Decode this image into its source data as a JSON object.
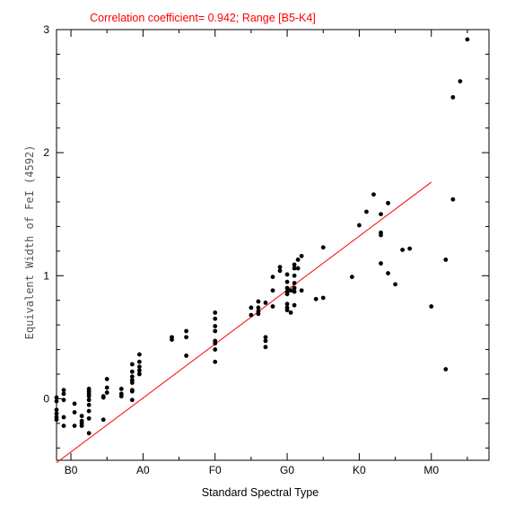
{
  "chart_data": {
    "type": "scatter",
    "title": "Correlation coefficient= 0.942; Range [B5-K4]",
    "xlabel": "Standard Spectral Type",
    "ylabel": "Equivalent Width of FeI (4592)",
    "xlim": [
      -2,
      58
    ],
    "ylim": [
      -0.5,
      3.0
    ],
    "x_tick_labels": [
      {
        "label": "B0",
        "value": 0
      },
      {
        "label": "A0",
        "value": 10
      },
      {
        "label": "F0",
        "value": 20
      },
      {
        "label": "G0",
        "value": 30
      },
      {
        "label": "K0",
        "value": 40
      },
      {
        "label": "M0",
        "value": 50
      }
    ],
    "y_ticks": [
      0,
      1,
      2,
      3
    ],
    "y_tick_labels": [
      "0",
      "1",
      "2",
      "3"
    ],
    "fit_line": {
      "x": [
        -2,
        50
      ],
      "y": [
        -0.52,
        1.76
      ],
      "color": "#ff0000"
    },
    "title_color": "#ff0000",
    "grid": false,
    "points": [
      [
        -2,
        -0.12
      ],
      [
        -2,
        -0.09
      ],
      [
        -2,
        -0.15
      ],
      [
        -2,
        -0.02
      ],
      [
        -2,
        0.01
      ],
      [
        -2,
        -0.17
      ],
      [
        -1,
        0.04
      ],
      [
        -1,
        0.07
      ],
      [
        -1,
        -0.01
      ],
      [
        -1,
        -0.15
      ],
      [
        -1,
        -0.22
      ],
      [
        0.5,
        -0.11
      ],
      [
        0.5,
        -0.22
      ],
      [
        0.5,
        -0.04
      ],
      [
        1.5,
        -0.14
      ],
      [
        1.5,
        -0.18
      ],
      [
        1.5,
        -0.2
      ],
      [
        1.5,
        -0.22
      ],
      [
        2.5,
        0.08
      ],
      [
        2.5,
        0.06
      ],
      [
        2.5,
        0.04
      ],
      [
        2.5,
        0.02
      ],
      [
        2.5,
        -0.01
      ],
      [
        2.5,
        -0.05
      ],
      [
        2.5,
        -0.1
      ],
      [
        2.5,
        -0.16
      ],
      [
        2.5,
        -0.28
      ],
      [
        4.5,
        0.02
      ],
      [
        4.5,
        0.01
      ],
      [
        4.5,
        -0.17
      ],
      [
        5,
        0.16
      ],
      [
        5,
        0.09
      ],
      [
        5,
        0.05
      ],
      [
        7,
        0.08
      ],
      [
        7,
        0.04
      ],
      [
        7,
        0.02
      ],
      [
        8.5,
        0.28
      ],
      [
        8.5,
        0.22
      ],
      [
        8.5,
        0.18
      ],
      [
        8.5,
        0.15
      ],
      [
        8.5,
        0.13
      ],
      [
        8.5,
        0.07
      ],
      [
        8.5,
        0.06
      ],
      [
        8.5,
        -0.01
      ],
      [
        9.5,
        0.36
      ],
      [
        9.5,
        0.3
      ],
      [
        9.5,
        0.26
      ],
      [
        9.5,
        0.23
      ],
      [
        9.5,
        0.2
      ],
      [
        14,
        0.5
      ],
      [
        14,
        0.48
      ],
      [
        16,
        0.55
      ],
      [
        16,
        0.5
      ],
      [
        16,
        0.35
      ],
      [
        20,
        0.7
      ],
      [
        20,
        0.65
      ],
      [
        20,
        0.59
      ],
      [
        20,
        0.55
      ],
      [
        20,
        0.47
      ],
      [
        20,
        0.45
      ],
      [
        20,
        0.4
      ],
      [
        20,
        0.3
      ],
      [
        25,
        0.74
      ],
      [
        25,
        0.68
      ],
      [
        26,
        0.79
      ],
      [
        26,
        0.74
      ],
      [
        26,
        0.71
      ],
      [
        26,
        0.69
      ],
      [
        27,
        0.78
      ],
      [
        27,
        0.5
      ],
      [
        27,
        0.47
      ],
      [
        27,
        0.42
      ],
      [
        28,
        0.99
      ],
      [
        28,
        0.88
      ],
      [
        28,
        0.75
      ],
      [
        29,
        1.07
      ],
      [
        29,
        1.04
      ],
      [
        30,
        1.01
      ],
      [
        30,
        0.95
      ],
      [
        30,
        0.9
      ],
      [
        30,
        0.87
      ],
      [
        30,
        0.85
      ],
      [
        30,
        0.77
      ],
      [
        30,
        0.74
      ],
      [
        30,
        0.72
      ],
      [
        30.5,
        0.88
      ],
      [
        30.5,
        0.7
      ],
      [
        31,
        1.09
      ],
      [
        31,
        1.06
      ],
      [
        31,
        1.0
      ],
      [
        31,
        0.94
      ],
      [
        31,
        0.9
      ],
      [
        31,
        0.87
      ],
      [
        31,
        0.76
      ],
      [
        31.5,
        1.13
      ],
      [
        31.5,
        1.06
      ],
      [
        32,
        1.16
      ],
      [
        32,
        0.88
      ],
      [
        34,
        0.81
      ],
      [
        35,
        1.23
      ],
      [
        35,
        0.82
      ],
      [
        39,
        0.99
      ],
      [
        40,
        1.41
      ],
      [
        41,
        1.52
      ],
      [
        42,
        1.66
      ],
      [
        43,
        1.5
      ],
      [
        43,
        1.35
      ],
      [
        43,
        1.33
      ],
      [
        43,
        1.1
      ],
      [
        44,
        1.59
      ],
      [
        44,
        1.02
      ],
      [
        45,
        0.93
      ],
      [
        46,
        1.21
      ],
      [
        47,
        1.22
      ],
      [
        50,
        0.75
      ],
      [
        52,
        1.13
      ],
      [
        52,
        0.24
      ],
      [
        53,
        2.45
      ],
      [
        53,
        1.62
      ],
      [
        54,
        2.58
      ],
      [
        55,
        2.92
      ]
    ]
  }
}
